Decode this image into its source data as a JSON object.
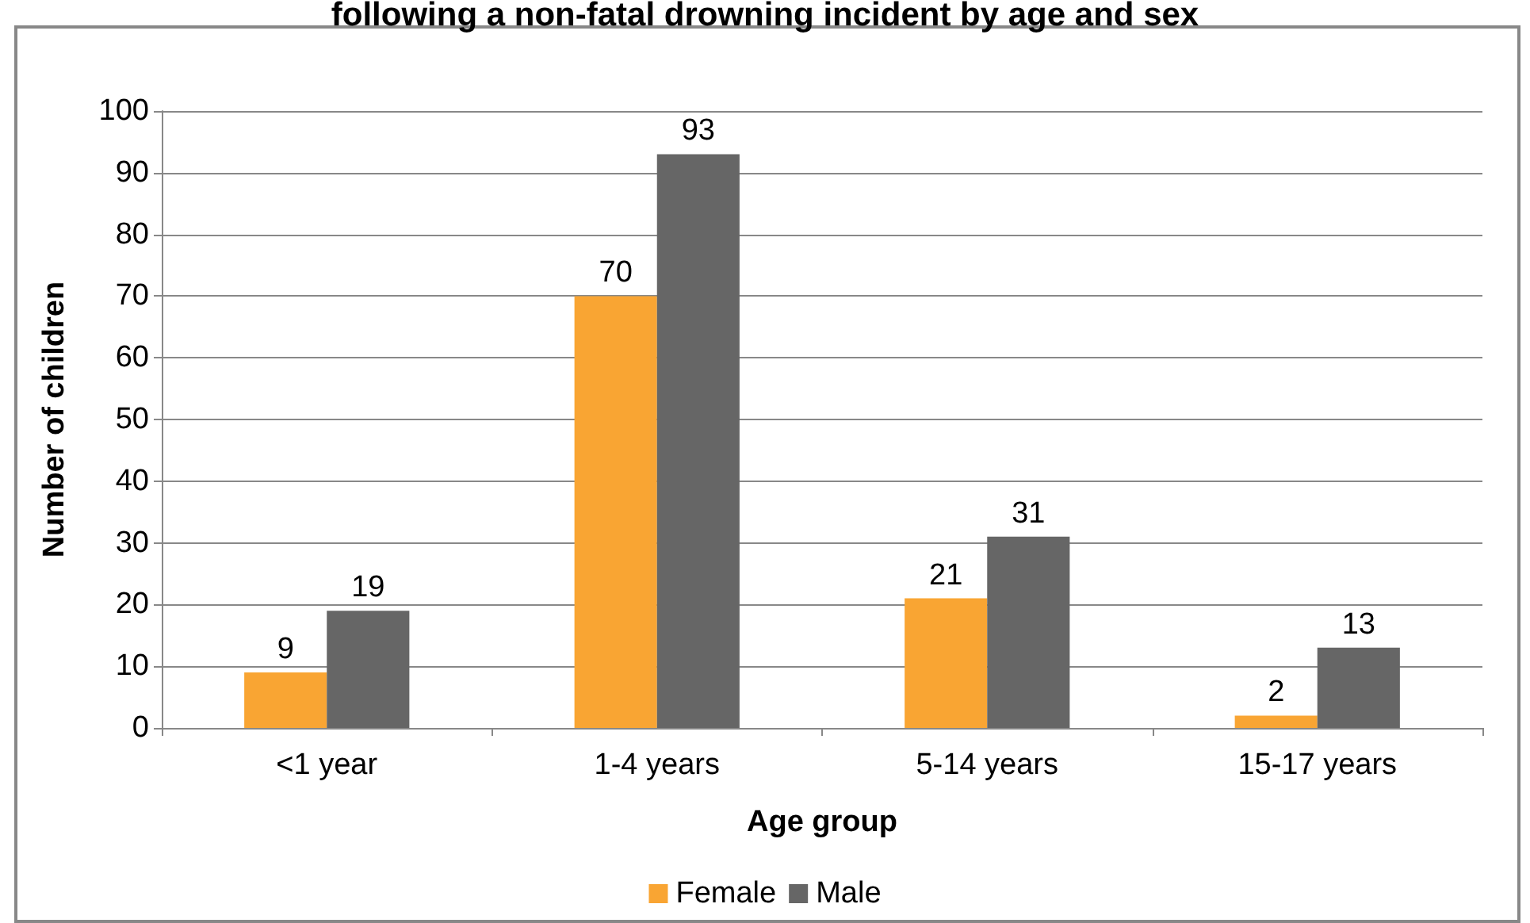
{
  "chart_data": {
    "type": "bar",
    "title": "following a non-fatal drowning incident by age and sex",
    "xlabel": "Age group",
    "ylabel": "Number of children",
    "categories": [
      "<1 year",
      "1-4 years",
      "5-14 years",
      "15-17 years"
    ],
    "series": [
      {
        "name": "Female",
        "color": "#f9a533",
        "values": [
          9,
          70,
          21,
          2
        ]
      },
      {
        "name": "Male",
        "color": "#666666",
        "values": [
          19,
          93,
          31,
          13
        ]
      }
    ],
    "ylim": [
      0,
      100
    ],
    "yticks": [
      0,
      10,
      20,
      30,
      40,
      50,
      60,
      70,
      80,
      90,
      100
    ],
    "grid": "y",
    "legend": "bottom",
    "data_labels": true
  }
}
